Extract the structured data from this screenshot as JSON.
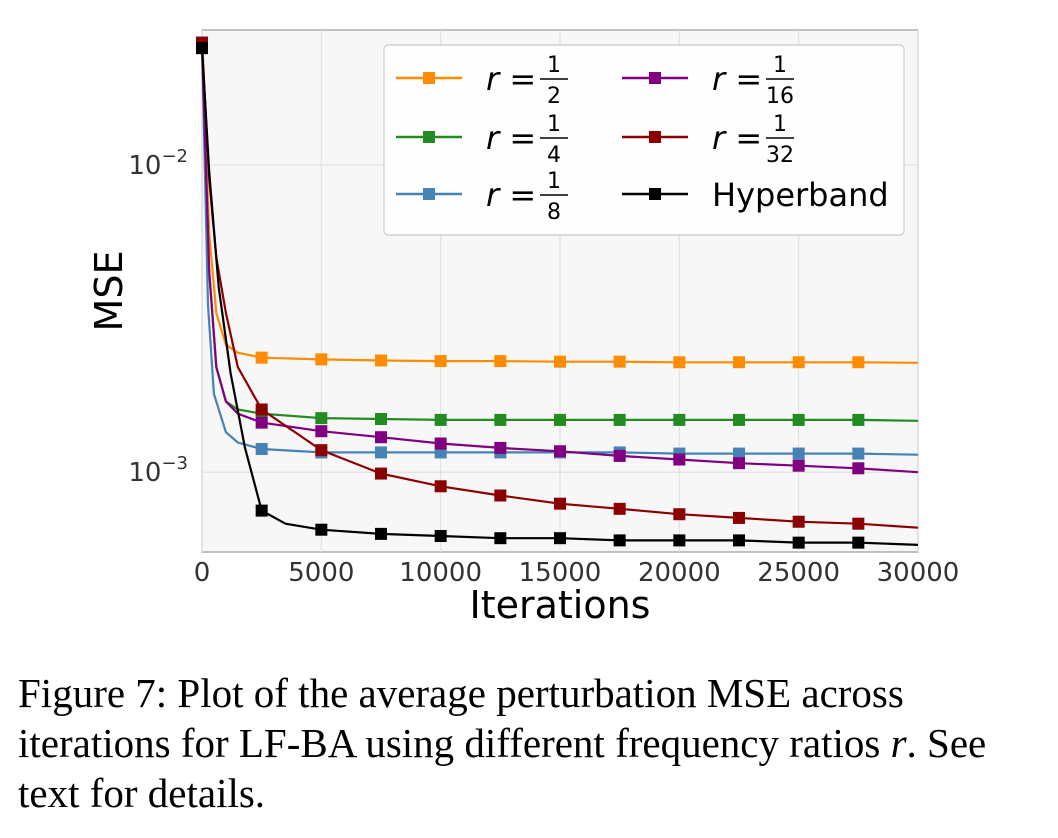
{
  "chart_data": {
    "type": "line",
    "xlabel": "Iterations",
    "ylabel": "MSE",
    "xlim": [
      0,
      30000
    ],
    "ylim": [
      0.00055,
      0.0275
    ],
    "yscale": "log",
    "xticks": [
      0,
      5000,
      10000,
      15000,
      20000,
      25000,
      30000
    ],
    "ytick_labels": [
      {
        "value": 0.01,
        "base": "10",
        "exp": "−2"
      },
      {
        "value": 0.001,
        "base": "10",
        "exp": "−3"
      }
    ],
    "grid": true,
    "legend_position": "top-right",
    "marker": "square",
    "marker_every": 2500,
    "series": [
      {
        "name_lhs": "r",
        "name_num": "1",
        "name_den": "2",
        "color": "#ff8c00",
        "points": [
          [
            0,
            0.025
          ],
          [
            300,
            0.006
          ],
          [
            600,
            0.0033
          ],
          [
            1000,
            0.0026
          ],
          [
            1500,
            0.00245
          ],
          [
            2500,
            0.00236
          ],
          [
            5000,
            0.00233
          ],
          [
            7500,
            0.00231
          ],
          [
            10000,
            0.0023
          ],
          [
            12500,
            0.0023
          ],
          [
            15000,
            0.00229
          ],
          [
            17500,
            0.00229
          ],
          [
            20000,
            0.00228
          ],
          [
            22500,
            0.00228
          ],
          [
            25000,
            0.00228
          ],
          [
            27500,
            0.00228
          ],
          [
            30000,
            0.00227
          ]
        ]
      },
      {
        "name_lhs": "r",
        "name_num": "1",
        "name_den": "4",
        "color": "#228b22",
        "points": [
          [
            0,
            0.025
          ],
          [
            300,
            0.0045
          ],
          [
            600,
            0.0022
          ],
          [
            1000,
            0.0017
          ],
          [
            1500,
            0.0016
          ],
          [
            2500,
            0.00155
          ],
          [
            5000,
            0.0015
          ],
          [
            7500,
            0.00149
          ],
          [
            10000,
            0.00148
          ],
          [
            12500,
            0.00148
          ],
          [
            15000,
            0.00148
          ],
          [
            17500,
            0.00148
          ],
          [
            20000,
            0.00148
          ],
          [
            22500,
            0.00148
          ],
          [
            25000,
            0.00148
          ],
          [
            27500,
            0.00148
          ],
          [
            30000,
            0.00147
          ]
        ]
      },
      {
        "name_lhs": "r",
        "name_num": "1",
        "name_den": "8",
        "color": "#4682b4",
        "points": [
          [
            0,
            0.025
          ],
          [
            250,
            0.0035
          ],
          [
            500,
            0.0018
          ],
          [
            1000,
            0.00135
          ],
          [
            1500,
            0.00125
          ],
          [
            2500,
            0.00119
          ],
          [
            5000,
            0.00116
          ],
          [
            7500,
            0.00116
          ],
          [
            10000,
            0.00116
          ],
          [
            12500,
            0.00116
          ],
          [
            15000,
            0.00116
          ],
          [
            17500,
            0.00116
          ],
          [
            20000,
            0.00115
          ],
          [
            22500,
            0.00115
          ],
          [
            25000,
            0.00115
          ],
          [
            27500,
            0.00115
          ],
          [
            30000,
            0.00114
          ]
        ]
      },
      {
        "name_lhs": "r",
        "name_num": "1",
        "name_den": "16",
        "color": "#800080",
        "points": [
          [
            0,
            0.025
          ],
          [
            300,
            0.0045
          ],
          [
            600,
            0.0022
          ],
          [
            1000,
            0.0017
          ],
          [
            1500,
            0.00155
          ],
          [
            2500,
            0.00145
          ],
          [
            5000,
            0.00136
          ],
          [
            7500,
            0.0013
          ],
          [
            10000,
            0.00124
          ],
          [
            12500,
            0.0012
          ],
          [
            15000,
            0.00117
          ],
          [
            17500,
            0.00113
          ],
          [
            20000,
            0.0011
          ],
          [
            22500,
            0.00107
          ],
          [
            25000,
            0.00105
          ],
          [
            27500,
            0.00103
          ],
          [
            30000,
            0.001
          ]
        ]
      },
      {
        "name_lhs": "r",
        "name_num": "1",
        "name_den": "32",
        "color": "#8b0000",
        "points": [
          [
            0,
            0.025
          ],
          [
            300,
            0.009
          ],
          [
            600,
            0.005
          ],
          [
            1000,
            0.0033
          ],
          [
            1500,
            0.0022
          ],
          [
            2500,
            0.0016
          ],
          [
            5000,
            0.00118
          ],
          [
            7500,
            0.00099
          ],
          [
            10000,
            0.0009
          ],
          [
            12500,
            0.00084
          ],
          [
            15000,
            0.00079
          ],
          [
            17500,
            0.00076
          ],
          [
            20000,
            0.00073
          ],
          [
            22500,
            0.00071
          ],
          [
            25000,
            0.00069
          ],
          [
            27500,
            0.00068
          ],
          [
            30000,
            0.00066
          ]
        ]
      },
      {
        "name_text": "Hyperband",
        "color": "#000000",
        "points": [
          [
            0,
            0.024
          ],
          [
            300,
            0.0095
          ],
          [
            700,
            0.004
          ],
          [
            1200,
            0.0021
          ],
          [
            1800,
            0.0012
          ],
          [
            2500,
            0.00075
          ],
          [
            3500,
            0.00068
          ],
          [
            5000,
            0.00065
          ],
          [
            7500,
            0.00063
          ],
          [
            10000,
            0.00062
          ],
          [
            12500,
            0.00061
          ],
          [
            15000,
            0.00061
          ],
          [
            17500,
            0.0006
          ],
          [
            20000,
            0.0006
          ],
          [
            22500,
            0.0006
          ],
          [
            25000,
            0.00059
          ],
          [
            27500,
            0.00059
          ],
          [
            30000,
            0.00058
          ]
        ]
      }
    ]
  },
  "caption": {
    "before": "Figure 7: Plot of the average perturbation MSE across iterations for LF-BA using different frequency ratios ",
    "math": "r",
    "after": ". See text for details."
  }
}
